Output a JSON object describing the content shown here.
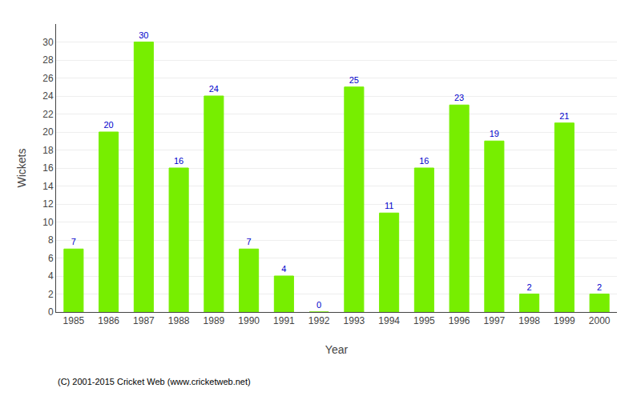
{
  "chart_data": {
    "type": "bar",
    "categories": [
      "1985",
      "1986",
      "1987",
      "1988",
      "1989",
      "1990",
      "1991",
      "1992",
      "1993",
      "1994",
      "1995",
      "1996",
      "1997",
      "1998",
      "1999",
      "2000"
    ],
    "values": [
      7,
      20,
      30,
      16,
      24,
      7,
      4,
      0,
      25,
      11,
      16,
      23,
      19,
      2,
      21,
      2
    ],
    "color": "#77ee00",
    "x_label": "Year",
    "y_label": "Wickets",
    "ylim": [
      0,
      32
    ],
    "yticks": [
      0,
      2,
      4,
      6,
      8,
      10,
      12,
      14,
      16,
      18,
      20,
      22,
      24,
      26,
      28,
      30
    ],
    "grid": true,
    "data_labels": true,
    "annotations": [
      "(C) 2001-2015 Cricket Web (www.cricketweb.net)"
    ]
  }
}
